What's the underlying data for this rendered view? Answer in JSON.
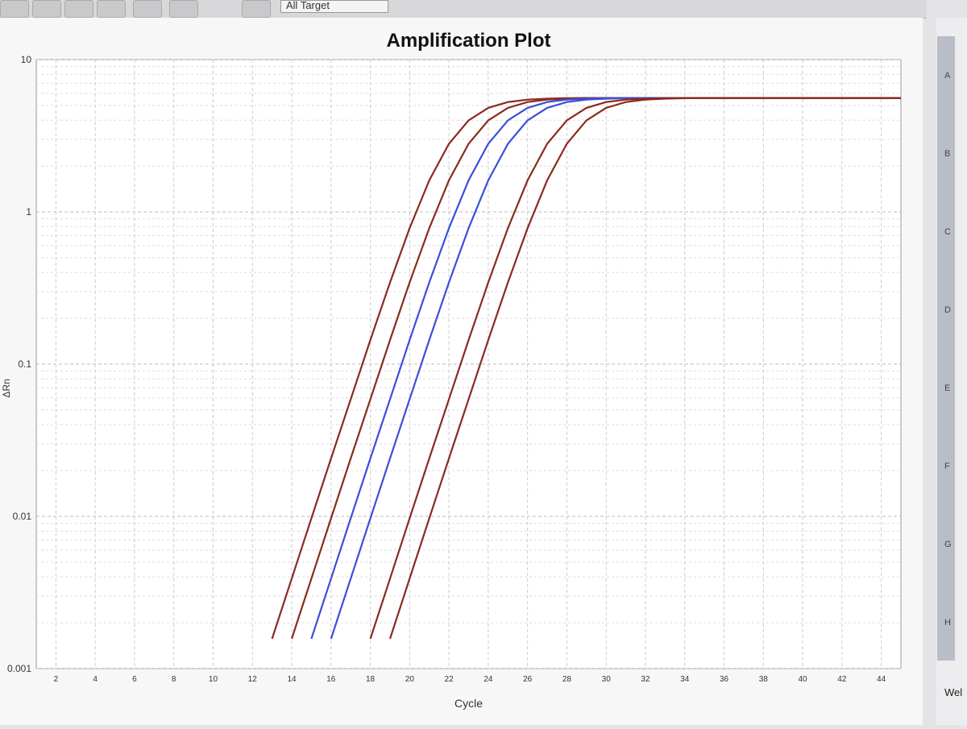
{
  "toolbar": {
    "dropdown": "All Target"
  },
  "wells": {
    "rows": [
      "A",
      "B",
      "C",
      "D",
      "E",
      "F",
      "G",
      "H"
    ],
    "label": "Wel"
  },
  "chart_data": {
    "type": "line",
    "title": "Amplification Plot",
    "x_label": "Cycle",
    "y_label": "ΔRn",
    "log_y": true,
    "grid": true,
    "x": [
      1,
      2,
      3,
      4,
      5,
      6,
      7,
      8,
      9,
      10,
      11,
      12,
      13,
      14,
      15,
      16,
      17,
      18,
      19,
      20,
      21,
      22,
      23,
      24,
      25,
      26,
      27,
      28,
      29,
      30,
      31,
      32,
      33,
      34,
      35,
      36,
      37,
      38,
      39,
      40,
      41,
      42,
      43,
      44,
      45
    ],
    "xlim": [
      1,
      45
    ],
    "xticks": [
      2,
      4,
      6,
      8,
      10,
      12,
      14,
      16,
      18,
      20,
      22,
      24,
      26,
      28,
      30,
      32,
      34,
      36,
      38,
      40,
      42,
      44
    ],
    "ylim": [
      0.001,
      10
    ],
    "yticks": [
      0.001,
      0.01,
      0.1,
      1,
      10
    ],
    "series": [
      {
        "color": "#8b2a1e",
        "values": [
          null,
          null,
          null,
          null,
          null,
          null,
          null,
          null,
          null,
          null,
          null,
          null,
          0.00157,
          0.0039,
          0.0097,
          0.024,
          0.0587,
          0.144,
          0.344,
          0.781,
          1.61,
          2.8,
          3.99,
          4.82,
          5.26,
          5.46,
          5.54,
          5.58,
          5.6,
          5.6,
          5.6,
          5.6,
          5.6,
          5.6,
          5.6,
          5.6,
          5.6,
          5.6,
          5.6,
          5.6,
          5.6,
          5.6,
          5.6,
          5.6,
          5.6
        ]
      },
      {
        "color": "#8b2a1e",
        "values": [
          null,
          null,
          null,
          null,
          null,
          null,
          null,
          null,
          null,
          null,
          null,
          null,
          null,
          0.00157,
          0.0039,
          0.0097,
          0.024,
          0.0587,
          0.144,
          0.344,
          0.781,
          1.61,
          2.8,
          3.99,
          4.82,
          5.26,
          5.46,
          5.54,
          5.58,
          5.6,
          5.6,
          5.6,
          5.6,
          5.6,
          5.6,
          5.6,
          5.6,
          5.6,
          5.6,
          5.6,
          5.6,
          5.6,
          5.6,
          5.6,
          5.6
        ]
      },
      {
        "color": "#3a4fd8",
        "values": [
          null,
          null,
          null,
          null,
          null,
          null,
          null,
          null,
          null,
          null,
          null,
          null,
          null,
          null,
          0.00157,
          0.0039,
          0.0097,
          0.024,
          0.0587,
          0.144,
          0.344,
          0.781,
          1.61,
          2.8,
          3.99,
          4.82,
          5.26,
          5.46,
          5.54,
          5.58,
          5.6,
          5.6,
          5.6,
          5.6,
          5.6,
          5.6,
          5.6,
          5.6,
          5.6,
          5.6,
          5.6,
          5.6,
          5.6,
          5.6,
          5.6
        ]
      },
      {
        "color": "#3a4fd8",
        "values": [
          null,
          null,
          null,
          null,
          null,
          null,
          null,
          null,
          null,
          null,
          null,
          null,
          null,
          null,
          null,
          0.00157,
          0.0039,
          0.0097,
          0.024,
          0.0587,
          0.144,
          0.344,
          0.781,
          1.61,
          2.8,
          3.99,
          4.82,
          5.26,
          5.46,
          5.54,
          5.58,
          5.6,
          5.6,
          5.6,
          5.6,
          5.6,
          5.6,
          5.6,
          5.6,
          5.6,
          5.6,
          5.6,
          5.6,
          5.6,
          5.6
        ]
      },
      {
        "color": "#8b2a1e",
        "values": [
          null,
          null,
          null,
          null,
          null,
          null,
          null,
          null,
          null,
          null,
          null,
          null,
          null,
          null,
          null,
          null,
          null,
          0.00157,
          0.0039,
          0.0097,
          0.024,
          0.0587,
          0.144,
          0.344,
          0.781,
          1.61,
          2.8,
          3.99,
          4.82,
          5.26,
          5.46,
          5.54,
          5.58,
          5.6,
          5.6,
          5.6,
          5.6,
          5.6,
          5.6,
          5.6,
          5.6,
          5.6,
          5.6,
          5.6,
          5.6
        ]
      },
      {
        "color": "#8b2a1e",
        "values": [
          null,
          null,
          null,
          null,
          null,
          null,
          null,
          null,
          null,
          null,
          null,
          null,
          null,
          null,
          null,
          null,
          null,
          null,
          0.00157,
          0.0039,
          0.0097,
          0.024,
          0.0587,
          0.144,
          0.344,
          0.781,
          1.61,
          2.8,
          3.99,
          4.82,
          5.26,
          5.46,
          5.54,
          5.58,
          5.6,
          5.6,
          5.6,
          5.6,
          5.6,
          5.6,
          5.6,
          5.6,
          5.6,
          5.6,
          5.6
        ]
      }
    ]
  }
}
